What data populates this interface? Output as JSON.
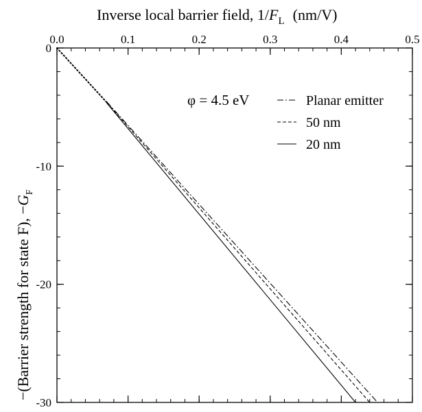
{
  "chart_data": {
    "type": "line",
    "title": "",
    "xlabel": {
      "prefix": "Inverse local barrier field, 1/",
      "var": "F",
      "sub": "L",
      "units": "(nm/V)"
    },
    "ylabel": {
      "prefix": "−(Barrier strength for state F), −",
      "var": "G",
      "sub": "F"
    },
    "xlim": [
      0,
      0.5
    ],
    "ylim": [
      -30,
      0
    ],
    "x_ticks": [
      0.0,
      0.1,
      0.2,
      0.3,
      0.4,
      0.5
    ],
    "x_tick_labels": [
      "0.0",
      "0.1",
      "0.2",
      "0.3",
      "0.4",
      "0.5"
    ],
    "y_ticks": [
      0,
      -10,
      -20,
      -30
    ],
    "y_tick_labels": [
      "0",
      "-10",
      "-20",
      "-30"
    ],
    "x_minor_step": 0.02,
    "y_minor_step": 2,
    "grid": false,
    "annotation": "φ = 4.5 eV",
    "legend_position": "top-right",
    "series": [
      {
        "name": "Planar emitter",
        "style": "dash-dot",
        "x": [
          0.07,
          0.451
        ],
        "y": [
          -4.55,
          -30
        ]
      },
      {
        "name": "50 nm",
        "style": "dashed",
        "x": [
          0.07,
          0.44
        ],
        "y": [
          -4.6,
          -30
        ]
      },
      {
        "name": "20 nm",
        "style": "solid",
        "x": [
          0.07,
          0.42
        ],
        "y": [
          -4.65,
          -30
        ]
      },
      {
        "name": "",
        "style": "dotted",
        "x": [
          0.0,
          0.07
        ],
        "y": [
          0,
          -4.6
        ]
      }
    ]
  }
}
